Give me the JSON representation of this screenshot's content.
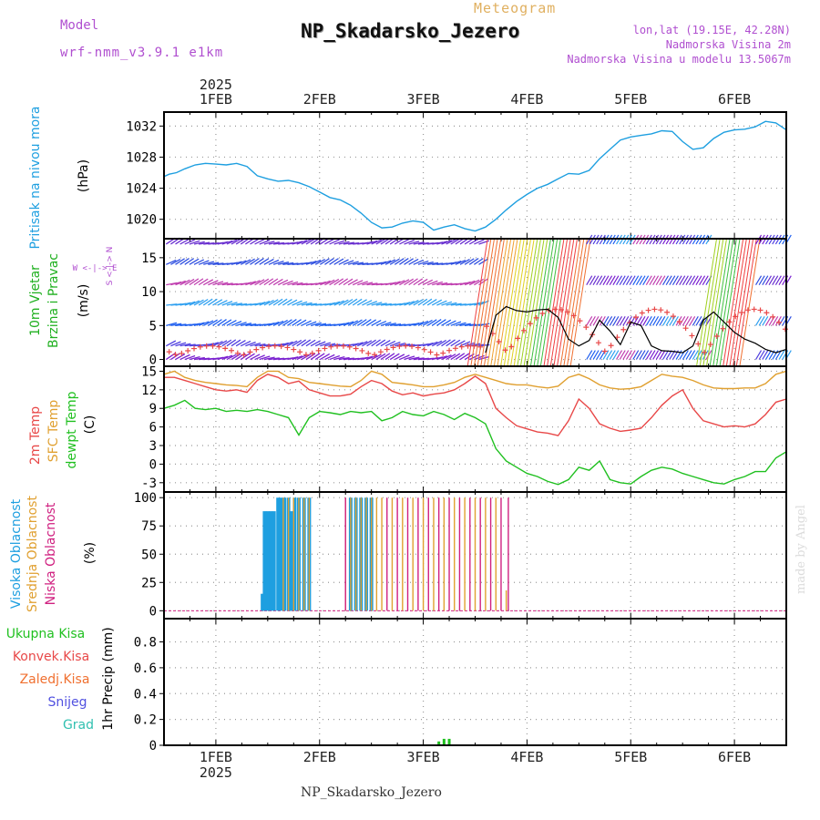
{
  "header": {
    "model_label": "Model",
    "model_name": "wrf-nmm_v3.9.1 e1km",
    "meteogram_label": "Meteogram",
    "station": "NP_Skadarsko_Jezero",
    "lonlat": "lon,lat (19.15E, 42.28N)",
    "altitude": "Nadmorska Visina 2m",
    "model_altitude": "Nadmorska Visina u modelu 13.5067m"
  },
  "footer": "NP_Skadarsko_Jezero",
  "credit": "made by Angel",
  "colors": {
    "pressure": "#1e9fe0",
    "t2m": "#e84848",
    "sfc": "#e0a030",
    "dewpt": "#20c020",
    "high_cloud": "#1e9fe0",
    "mid_cloud": "#e0a030",
    "low_cloud": "#d02080",
    "precip": "#20c020",
    "wind_label": "#20b020",
    "purple": "#b04fd0"
  },
  "time_axis": {
    "year": "2025",
    "days": [
      "1FEB",
      "2FEB",
      "3FEB",
      "4FEB",
      "5FEB",
      "6FEB"
    ],
    "x_range_days": [
      0.5,
      6.5
    ]
  },
  "panel_labels": {
    "pressure": {
      "title": "Pritisak na nivou mora",
      "unit": "(hPa)"
    },
    "wind": {
      "line1": "10m Vjetar",
      "line2": "Brzina i Pravac",
      "unit": "(m/s)",
      "compass_ns": "S <-|-> N",
      "compass_we": "W <-|-> E"
    },
    "temp": {
      "t2m": "2m Temp",
      "sfc": "SFC Temp",
      "dewpt": "dewpt Temp",
      "unit": "(C)"
    },
    "cloud": {
      "high": "Visoka Oblacnost",
      "mid": "Srednja Oblacnost",
      "low": "Niska Oblacnost",
      "unit": "(%)"
    },
    "precip": {
      "total": "Ukupna Kisa",
      "conv": "Konvek.Kisa",
      "frozen": "Zaledj.Kisa",
      "snow": "Snijeg",
      "graupel": "Grad",
      "unit": "1hr Precip (mm)"
    }
  },
  "chart_data": [
    {
      "type": "line",
      "name": "pressure",
      "yticks": [
        1020,
        1024,
        1028,
        1032
      ],
      "ylim": [
        1017.5,
        1033.8
      ],
      "series": [
        {
          "x": [
            0.5,
            0.55,
            0.62,
            0.7,
            0.8,
            0.9,
            1.0,
            1.1,
            1.2,
            1.3,
            1.4,
            1.5,
            1.6,
            1.7,
            1.8,
            1.9,
            2.0,
            2.1,
            2.2,
            2.3,
            2.4,
            2.5,
            2.6,
            2.7,
            2.8,
            2.9,
            3.0,
            3.1,
            3.2,
            3.3,
            3.4,
            3.5,
            3.6,
            3.7,
            3.8,
            3.9,
            4.0,
            4.1,
            4.2,
            4.3,
            4.4,
            4.5,
            4.6,
            4.7,
            4.8,
            4.9,
            5.0,
            5.1,
            5.2,
            5.3,
            5.4,
            5.5,
            5.6,
            5.7,
            5.8,
            5.9,
            6.0,
            6.1,
            6.2,
            6.3,
            6.4,
            6.5
          ],
          "y": [
            1025.5,
            1025.8,
            1026.0,
            1026.5,
            1027.0,
            1027.2,
            1027.1,
            1027.0,
            1027.2,
            1026.8,
            1025.6,
            1025.2,
            1024.9,
            1025.0,
            1024.7,
            1024.2,
            1023.5,
            1022.8,
            1022.5,
            1021.8,
            1020.8,
            1019.6,
            1018.9,
            1019.0,
            1019.5,
            1019.8,
            1019.6,
            1018.6,
            1019.0,
            1019.3,
            1018.8,
            1018.5,
            1019.0,
            1020.0,
            1021.2,
            1022.3,
            1023.2,
            1024.0,
            1024.5,
            1025.2,
            1025.9,
            1025.8,
            1026.3,
            1027.8,
            1029.0,
            1030.2,
            1030.6,
            1030.8,
            1031.0,
            1031.4,
            1031.3,
            1030.0,
            1029.0,
            1029.2,
            1030.4,
            1031.2,
            1031.5,
            1031.6,
            1031.9,
            1032.6,
            1032.4,
            1031.5
          ]
        }
      ]
    },
    {
      "type": "line",
      "name": "wind",
      "yticks": [
        0,
        5,
        10,
        15
      ],
      "ylim": [
        -1,
        17.8
      ],
      "barb_rows_ms": [
        0,
        2,
        5,
        8,
        11,
        14,
        17
      ],
      "series": [
        {
          "name": "speed",
          "x": [
            3.6,
            3.7,
            3.8,
            3.9,
            4.0,
            4.1,
            4.2,
            4.3,
            4.4,
            4.5,
            4.6,
            4.7,
            4.8,
            4.9,
            5.0,
            5.1,
            5.2,
            5.3,
            5.4,
            5.5,
            5.6,
            5.7,
            5.8,
            5.9,
            6.0,
            6.1,
            6.2,
            6.3,
            6.4,
            6.5
          ],
          "y": [
            1.0,
            6.5,
            7.8,
            7.2,
            7.0,
            7.3,
            7.4,
            6.2,
            3.0,
            2.0,
            2.8,
            5.8,
            4.2,
            2.2,
            5.5,
            5.0,
            2.0,
            1.3,
            1.2,
            1.0,
            2.0,
            5.8,
            7.0,
            5.5,
            4.0,
            3.0,
            2.4,
            1.5,
            1.0,
            1.5
          ]
        }
      ]
    },
    {
      "type": "line",
      "name": "temperature",
      "yticks": [
        -3,
        0,
        3,
        6,
        9,
        12,
        15
      ],
      "ylim": [
        -4.5,
        15.8
      ],
      "series": [
        {
          "name": "2m Temp",
          "x": [
            0.5,
            0.6,
            0.7,
            0.8,
            0.9,
            1.0,
            1.1,
            1.2,
            1.3,
            1.4,
            1.5,
            1.6,
            1.7,
            1.8,
            1.9,
            2.0,
            2.1,
            2.2,
            2.3,
            2.4,
            2.5,
            2.6,
            2.7,
            2.8,
            2.9,
            3.0,
            3.1,
            3.2,
            3.3,
            3.4,
            3.5,
            3.6,
            3.7,
            3.8,
            3.9,
            4.0,
            4.1,
            4.2,
            4.3,
            4.4,
            4.5,
            4.6,
            4.7,
            4.8,
            4.9,
            5.0,
            5.1,
            5.2,
            5.3,
            5.4,
            5.5,
            5.6,
            5.7,
            5.8,
            5.9,
            6.0,
            6.1,
            6.2,
            6.3,
            6.4,
            6.5
          ],
          "y": [
            14,
            14,
            13.5,
            13,
            12.5,
            12,
            11.8,
            12,
            11.6,
            13.5,
            14.5,
            14,
            13,
            13.4,
            12,
            11.5,
            11,
            11,
            11.3,
            12.5,
            13.5,
            13,
            11.8,
            11.2,
            11.5,
            11,
            11.3,
            11.5,
            12,
            13,
            14.2,
            13,
            9,
            7.5,
            6.2,
            5.7,
            5.2,
            5,
            4.6,
            7,
            10.5,
            9,
            6.5,
            5.8,
            5.3,
            5.5,
            5.8,
            7.5,
            9.5,
            11,
            12,
            9,
            7,
            6.5,
            6,
            6.2,
            6,
            6.5,
            8,
            10,
            10.5
          ]
        },
        {
          "name": "SFC Temp",
          "x": [
            0.5,
            0.6,
            0.7,
            0.8,
            0.9,
            1.0,
            1.1,
            1.2,
            1.3,
            1.4,
            1.5,
            1.6,
            1.7,
            1.8,
            1.9,
            2.0,
            2.1,
            2.2,
            2.3,
            2.4,
            2.5,
            2.6,
            2.7,
            2.8,
            2.9,
            3.0,
            3.1,
            3.2,
            3.3,
            3.4,
            3.5,
            3.6,
            3.7,
            3.8,
            3.9,
            4.0,
            4.1,
            4.2,
            4.3,
            4.4,
            4.5,
            4.6,
            4.7,
            4.8,
            4.9,
            5.0,
            5.1,
            5.2,
            5.3,
            5.4,
            5.5,
            5.6,
            5.7,
            5.8,
            5.9,
            6.0,
            6.1,
            6.2,
            6.3,
            6.4,
            6.5
          ],
          "y": [
            14.5,
            15,
            14,
            13.5,
            13.2,
            13,
            12.8,
            12.7,
            12.5,
            14,
            15,
            15,
            14,
            13.8,
            13.2,
            13,
            12.8,
            12.6,
            12.5,
            13.5,
            15,
            14.5,
            13.2,
            13,
            12.8,
            12.5,
            12.5,
            12.8,
            13.2,
            14,
            14.5,
            14,
            13.5,
            13,
            12.8,
            12.8,
            12.5,
            12.3,
            12.6,
            14,
            14.5,
            13.8,
            12.8,
            12.3,
            12.1,
            12.2,
            12.5,
            13.5,
            14.5,
            14.2,
            14,
            13.5,
            12.8,
            12.3,
            12.2,
            12.2,
            12.3,
            12.3,
            13,
            14.5,
            15
          ]
        },
        {
          "name": "dewpt Temp",
          "x": [
            0.5,
            0.6,
            0.7,
            0.8,
            0.9,
            1.0,
            1.1,
            1.2,
            1.3,
            1.4,
            1.5,
            1.6,
            1.7,
            1.8,
            1.9,
            2.0,
            2.1,
            2.2,
            2.3,
            2.4,
            2.5,
            2.6,
            2.7,
            2.8,
            2.9,
            3.0,
            3.1,
            3.2,
            3.3,
            3.4,
            3.5,
            3.6,
            3.7,
            3.8,
            3.9,
            4.0,
            4.1,
            4.2,
            4.3,
            4.4,
            4.5,
            4.6,
            4.7,
            4.8,
            4.9,
            5.0,
            5.1,
            5.2,
            5.3,
            5.4,
            5.5,
            5.6,
            5.7,
            5.8,
            5.9,
            6.0,
            6.1,
            6.2,
            6.3,
            6.4,
            6.5
          ],
          "y": [
            9,
            9.5,
            10.3,
            9,
            8.8,
            9,
            8.5,
            8.7,
            8.5,
            8.8,
            8.5,
            8,
            7.5,
            4.7,
            7.5,
            8.5,
            8.3,
            8,
            8.5,
            8.3,
            8.5,
            7,
            7.5,
            8.5,
            8,
            7.8,
            8.5,
            8,
            7.2,
            8.2,
            7.5,
            6.5,
            2.5,
            0.5,
            -0.5,
            -1.5,
            -2,
            -2.8,
            -3.3,
            -2.5,
            -0.5,
            -1,
            0.5,
            -2.5,
            -3,
            -3.2,
            -2,
            -1,
            -0.5,
            -0.8,
            -1.5,
            -2,
            -2.5,
            -3,
            -3.2,
            -2.5,
            -2,
            -1.2,
            -1.2,
            1,
            2
          ]
        }
      ]
    },
    {
      "type": "bar",
      "name": "cloud",
      "yticks": [
        0,
        25,
        50,
        75,
        100
      ],
      "ylim": [
        -7,
        105
      ],
      "series": [
        {
          "name": "Visoka Oblacnost",
          "x": [
            1.45,
            1.47,
            1.5,
            1.53,
            1.56,
            1.6,
            1.63,
            1.66,
            1.7,
            1.73,
            1.76,
            1.8,
            1.85,
            1.9,
            2.3,
            2.35,
            2.4,
            2.45,
            2.5
          ],
          "y": [
            15,
            88,
            88,
            88,
            88,
            100,
            100,
            100,
            100,
            88,
            100,
            100,
            100,
            100,
            100,
            100,
            100,
            100,
            100
          ]
        },
        {
          "name": "Srednja Oblacnost",
          "x": [
            1.65,
            1.7,
            1.75,
            1.8,
            1.85,
            1.9,
            2.25,
            2.3,
            2.35,
            2.4,
            2.45,
            2.5,
            2.55,
            2.6,
            2.7,
            2.8,
            2.9,
            3.0,
            3.1,
            3.2,
            3.3,
            3.4,
            3.5,
            3.6,
            3.7,
            3.8
          ],
          "y": [
            100,
            100,
            100,
            100,
            100,
            100,
            100,
            100,
            100,
            100,
            100,
            100,
            100,
            100,
            100,
            100,
            100,
            100,
            100,
            100,
            100,
            100,
            100,
            100,
            100,
            18
          ]
        },
        {
          "name": "Niska Oblacnost",
          "x": [
            2.25,
            2.65,
            2.75,
            2.85,
            2.95,
            3.05,
            3.15,
            3.25,
            3.35,
            3.45,
            3.55,
            3.65,
            3.75,
            3.82
          ],
          "y": [
            100,
            100,
            100,
            100,
            100,
            100,
            100,
            100,
            100,
            100,
            100,
            100,
            100,
            100
          ]
        }
      ]
    },
    {
      "type": "bar",
      "name": "precipitation",
      "yticks": [
        0,
        0.2,
        0.4,
        0.6,
        0.8
      ],
      "ylim": [
        0,
        0.98
      ],
      "series": [
        {
          "name": "Ukupna Kisa",
          "x": [
            3.15,
            3.2,
            3.25
          ],
          "y": [
            0.03,
            0.05,
            0.05
          ]
        }
      ]
    }
  ]
}
